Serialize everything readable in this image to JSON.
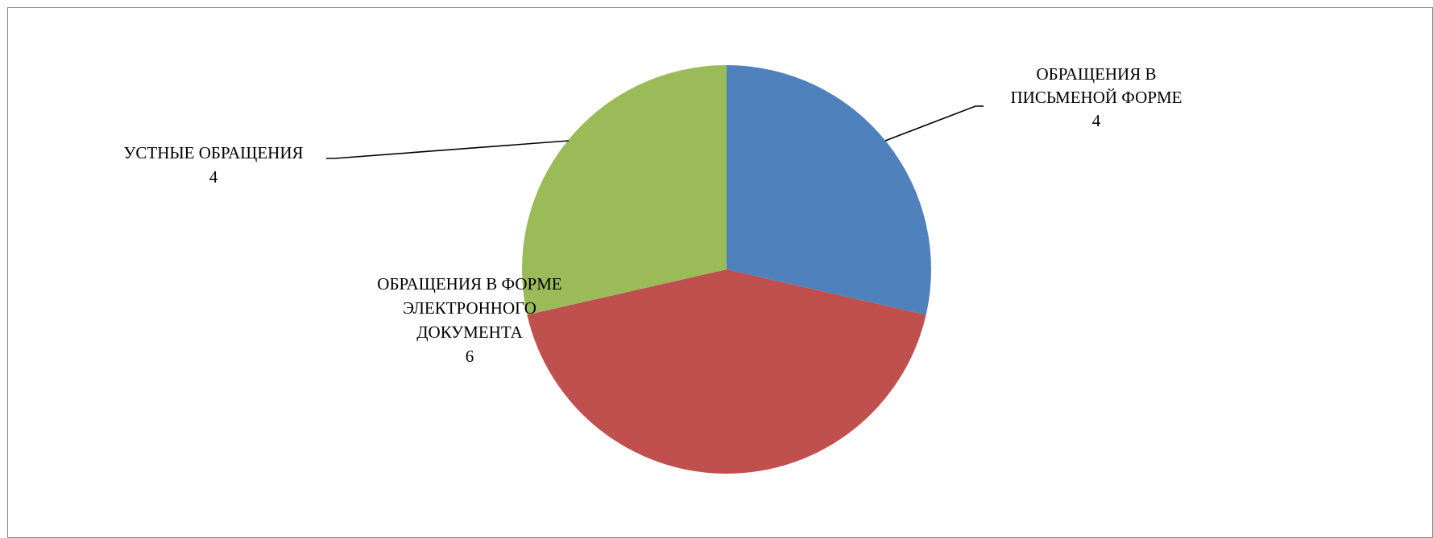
{
  "chart_data": {
    "type": "pie",
    "title": "",
    "slices": [
      {
        "label_lines": [
          "ОБРАЩЕНИЯ В",
          "ПИСЬМЕНОЙ ФОРМЕ"
        ],
        "value": 4,
        "value_label": "4",
        "color": "#4F81BD"
      },
      {
        "label_lines": [
          "ОБРАЩЕНИЯ В ФОРМЕ",
          "ЭЛЕКТРОННОГО",
          "ДОКУМЕНТА"
        ],
        "value": 6,
        "value_label": "6",
        "color": "#C0504D"
      },
      {
        "label_lines": [
          "УСТНЫЕ ОБРАЩЕНИЯ"
        ],
        "value": 4,
        "value_label": "4",
        "color": "#9BBB59"
      }
    ],
    "start_angle_deg": 0,
    "direction": "clockwise",
    "legend": "none",
    "data_labels": "outside-with-leader-lines"
  }
}
